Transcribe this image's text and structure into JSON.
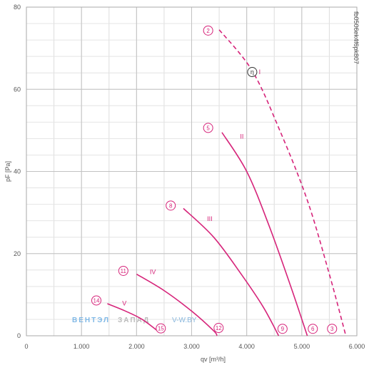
{
  "chart_data": {
    "type": "line",
    "xlabel": "qv [m³/h]",
    "ylabel": "pF [Pa]",
    "xlim": [
      0,
      6000
    ],
    "ylim": [
      0,
      80
    ],
    "x_ticks": [
      {
        "value": 0,
        "label": "0"
      },
      {
        "value": 1000,
        "label": "1.000"
      },
      {
        "value": 2000,
        "label": "2.000"
      },
      {
        "value": 3000,
        "label": "3.000"
      },
      {
        "value": 4000,
        "label": "4.000"
      },
      {
        "value": 5000,
        "label": "5.000"
      },
      {
        "value": 6000,
        "label": "6.000"
      }
    ],
    "y_ticks": [
      {
        "value": 0,
        "label": "0"
      },
      {
        "value": 20,
        "label": "20"
      },
      {
        "value": 40,
        "label": "40"
      },
      {
        "value": 60,
        "label": "60"
      },
      {
        "value": 80,
        "label": "80"
      }
    ],
    "x_minor_grid_step": 500,
    "y_minor_grid_step": 4,
    "grid": true,
    "series_color": "#d6247a",
    "series": [
      {
        "name": "I",
        "dashed": true,
        "points": [
          [
            3500,
            74.5
          ],
          [
            4100,
            64.5
          ],
          [
            4600,
            50
          ],
          [
            5100,
            33
          ],
          [
            5500,
            15
          ],
          [
            5800,
            0
          ]
        ],
        "label_at": [
          4220,
          64.2
        ]
      },
      {
        "name": "II",
        "dashed": false,
        "points": [
          [
            3550,
            49.5
          ],
          [
            4000,
            40
          ],
          [
            4400,
            27
          ],
          [
            4800,
            12
          ],
          [
            5100,
            0
          ]
        ],
        "label_at": [
          3880,
          48.5
        ]
      },
      {
        "name": "III",
        "dashed": false,
        "points": [
          [
            2850,
            31
          ],
          [
            3400,
            24
          ],
          [
            3900,
            15
          ],
          [
            4300,
            7
          ],
          [
            4580,
            0
          ]
        ],
        "label_at": [
          3280,
          28.5
        ]
      },
      {
        "name": "IV",
        "dashed": false,
        "points": [
          [
            2000,
            15
          ],
          [
            2500,
            11
          ],
          [
            3000,
            6
          ],
          [
            3400,
            1.2
          ],
          [
            3460,
            0
          ]
        ],
        "label_at": [
          2240,
          15.5
        ]
      },
      {
        "name": "V",
        "dashed": false,
        "points": [
          [
            1470,
            7.8
          ],
          [
            1800,
            6
          ],
          [
            2100,
            4
          ],
          [
            2400,
            1
          ]
        ],
        "label_at": [
          1740,
          7.9
        ]
      }
    ],
    "markers": [
      {
        "label": "2",
        "x": 3300,
        "y": 74.3
      },
      {
        "label": "5",
        "x": 3300,
        "y": 50.6
      },
      {
        "label": "8",
        "x": 2620,
        "y": 31.7
      },
      {
        "label": "11",
        "x": 1760,
        "y": 15.8
      },
      {
        "label": "14",
        "x": 1270,
        "y": 8.6
      },
      {
        "label": "3",
        "x": 5550,
        "y": 1.7
      },
      {
        "label": "6",
        "x": 5200,
        "y": 1.7
      },
      {
        "label": "9",
        "x": 4650,
        "y": 1.7
      },
      {
        "label": "12",
        "x": 3490,
        "y": 1.9
      },
      {
        "label": "15",
        "x": 2440,
        "y": 1.8
      }
    ],
    "efficiency_marker": {
      "label": "η",
      "x": 4100,
      "y": 64.2
    },
    "code": "fb0506ek4f6pk807"
  },
  "watermark": {
    "part1": "ВЕНТЭЛ",
    "part2": "ЗАПАД",
    "part3": "V-W.BY",
    "color1": "#7fb8e6",
    "color2": "#bbbbbb",
    "color3": "#8ab8de"
  }
}
